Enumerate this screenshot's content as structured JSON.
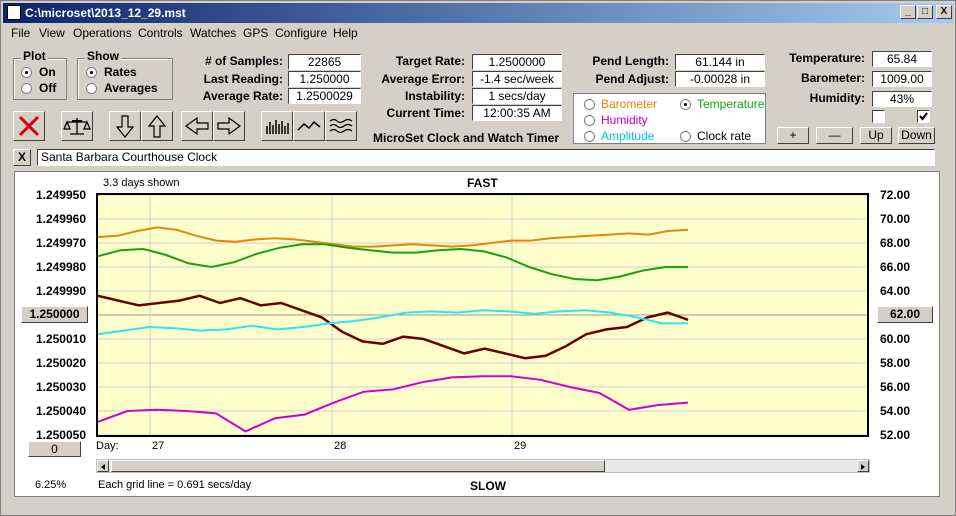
{
  "window": {
    "title": "C:\\microset\\2013_12_29.mst",
    "minimize": "_",
    "maximize": "□",
    "close": "X"
  },
  "menu": [
    "File",
    "View",
    "Operations",
    "Controls",
    "Watches",
    "GPS",
    "Configure",
    "Help"
  ],
  "plot_group": {
    "title": "Plot",
    "on": "On",
    "off": "Off",
    "selected": "On"
  },
  "show_group": {
    "title": "Show",
    "rates": "Rates",
    "averages": "Averages",
    "selected": "Rates"
  },
  "stats": {
    "samples_label": "# of Samples:",
    "samples": "22865",
    "last_label": "Last Reading:",
    "last": "1.250000",
    "avg_label": "Average Rate:",
    "avg": "1.2500029",
    "target_label": "Target Rate:",
    "target": "1.2500000",
    "avgerr_label": "Average Error:",
    "avgerr": "-1.4 sec/week",
    "instab_label": "Instability:",
    "instab": "1 secs/day",
    "time_label": "Current Time:",
    "time": "12:00:35 AM",
    "pendlen_label": "Pend Length:",
    "pendlen": "61.144 in",
    "pendadj_label": "Pend Adjust:",
    "pendadj": "-0.00028 in",
    "temp_label": "Temperature:",
    "temp": "65.84",
    "baro_label": "Barometer:",
    "baro": "1009.00",
    "hum_label": "Humidity:",
    "hum": "43%"
  },
  "app_name": "MicroSet Clock and Watch Timer",
  "options": {
    "barometer": "Barometer",
    "temperature": "Temperature",
    "humidity": "Humidity",
    "amplitude": "Amplitude",
    "clockrate": "Clock rate",
    "selected": "Temperature"
  },
  "options_colors": {
    "barometer": "#e8860b",
    "temperature": "#12a412",
    "humidity": "#c000c0",
    "amplitude": "#00c8e8",
    "clockrate": "#000000"
  },
  "scale_buttons": {
    "plus": "+",
    "minus": "—",
    "up": "Up",
    "down": "Down"
  },
  "clock_name": "Santa Barbara Courthouse Clock",
  "clear_button": "X",
  "plot": {
    "days_shown": "3.3 days shown",
    "fast": "FAST",
    "slow": "SLOW",
    "day_label": "Day:",
    "grid_note": "Each grid line = 0.691 secs/day",
    "percent": "6.25%",
    "left_button": "0",
    "center_left": "1.250000",
    "center_right": "62.00"
  },
  "chart_data": {
    "type": "line",
    "x_ticks": [
      "27",
      "28",
      "29"
    ],
    "left_axis": {
      "ticks": [
        "1.249950",
        "1.249960",
        "1.249970",
        "1.249980",
        "1.249990",
        "1.250000",
        "1.250010",
        "1.250020",
        "1.250030",
        "1.250040",
        "1.250050"
      ],
      "range": [
        1.24995,
        1.25005
      ]
    },
    "right_axis": {
      "ticks": [
        "72.00",
        "70.00",
        "68.00",
        "66.00",
        "64.00",
        "62.00",
        "60.00",
        "58.00",
        "56.00",
        "54.00",
        "52.00"
      ],
      "range": [
        52,
        72
      ]
    },
    "series": [
      {
        "key": "barometer",
        "color": "#e8860b",
        "axis": "right",
        "values": [
          68.5,
          68.6,
          69.0,
          69.3,
          69.1,
          68.6,
          68.2,
          68.1,
          68.3,
          68.4,
          68.3,
          68.1,
          67.9,
          67.7,
          67.7,
          67.8,
          67.9,
          67.8,
          67.7,
          67.8,
          68.0,
          68.2,
          68.2,
          68.4,
          68.5,
          68.6,
          68.7,
          68.8,
          68.7,
          69.0,
          69.1
        ]
      },
      {
        "key": "temperature",
        "color": "#12a412",
        "axis": "right",
        "values": [
          66.9,
          67.4,
          67.5,
          67.0,
          66.3,
          66.0,
          66.4,
          67.1,
          67.6,
          67.9,
          67.9,
          67.6,
          67.4,
          67.2,
          67.2,
          67.4,
          67.5,
          67.3,
          66.8,
          66.0,
          65.4,
          65.0,
          64.9,
          65.2,
          65.7,
          66.0,
          66.0
        ]
      },
      {
        "key": "clockrate",
        "color": "#6b0000",
        "axis": "left",
        "values": [
          1.249992,
          1.249994,
          1.249996,
          1.249995,
          1.249994,
          1.249992,
          1.249995,
          1.249993,
          1.249996,
          1.249995,
          1.249998,
          1.250001,
          1.250007,
          1.250011,
          1.250012,
          1.250009,
          1.25001,
          1.250013,
          1.250016,
          1.250014,
          1.250016,
          1.250018,
          1.250017,
          1.250013,
          1.250008,
          1.250006,
          1.250005,
          1.250001,
          1.249999,
          1.250002
        ]
      },
      {
        "key": "amplitude",
        "color": "#28e8f0",
        "axis": "right",
        "values": [
          60.4,
          60.7,
          61.0,
          60.9,
          60.7,
          60.8,
          61.1,
          60.8,
          61.0,
          61.3,
          61.5,
          61.8,
          62.2,
          62.3,
          62.2,
          62.4,
          62.3,
          62.1,
          62.3,
          62.4,
          62.2,
          61.8,
          61.3,
          61.3
        ]
      },
      {
        "key": "humidity",
        "color": "#d000d0",
        "axis": "right",
        "values": [
          53.1,
          54.0,
          54.1,
          54.0,
          53.8,
          52.3,
          53.4,
          53.7,
          54.7,
          55.6,
          55.8,
          56.4,
          56.8,
          56.9,
          56.9,
          56.6,
          56.0,
          55.5,
          54.1,
          54.5,
          54.7
        ]
      }
    ]
  }
}
